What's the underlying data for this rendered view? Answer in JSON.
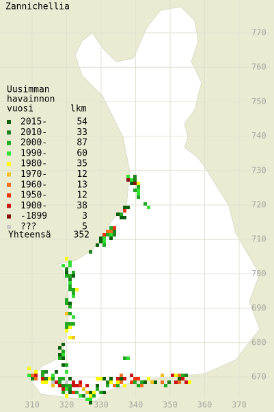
{
  "title": "Zannichellia",
  "legend": {
    "header": [
      "Uusimman",
      "havainnon",
      "vuosi"
    ],
    "count_header": "lkm",
    "entries": [
      {
        "label": "2015-",
        "count": 54,
        "color": "#0b5e0b"
      },
      {
        "label": "2010-",
        "count": 33,
        "color": "#1f7f1f"
      },
      {
        "label": "2000-",
        "count": 87,
        "color": "#22a822"
      },
      {
        "label": "1990-",
        "count": 60,
        "color": "#33e033"
      },
      {
        "label": "1980-",
        "count": 35,
        "color": "#ffff00"
      },
      {
        "label": "1970-",
        "count": 12,
        "color": "#f0c020"
      },
      {
        "label": "1960-",
        "count": 13,
        "color": "#f07020"
      },
      {
        "label": "1950-",
        "count": 12,
        "color": "#ee3311"
      },
      {
        "label": "1900-",
        "count": 38,
        "color": "#cc1111"
      },
      {
        "label": "-1899",
        "count": 3,
        "color": "#881111"
      },
      {
        "label": "???",
        "count": 5,
        "color": "#c8c8c8"
      }
    ],
    "total_label": "Yhteensä",
    "total": 352
  },
  "axes": {
    "x_ticks": [
      310,
      320,
      330,
      340,
      350,
      360,
      370
    ],
    "y_ticks": [
      670,
      680,
      690,
      700,
      710,
      720,
      730,
      740,
      750,
      760,
      770
    ]
  }
}
